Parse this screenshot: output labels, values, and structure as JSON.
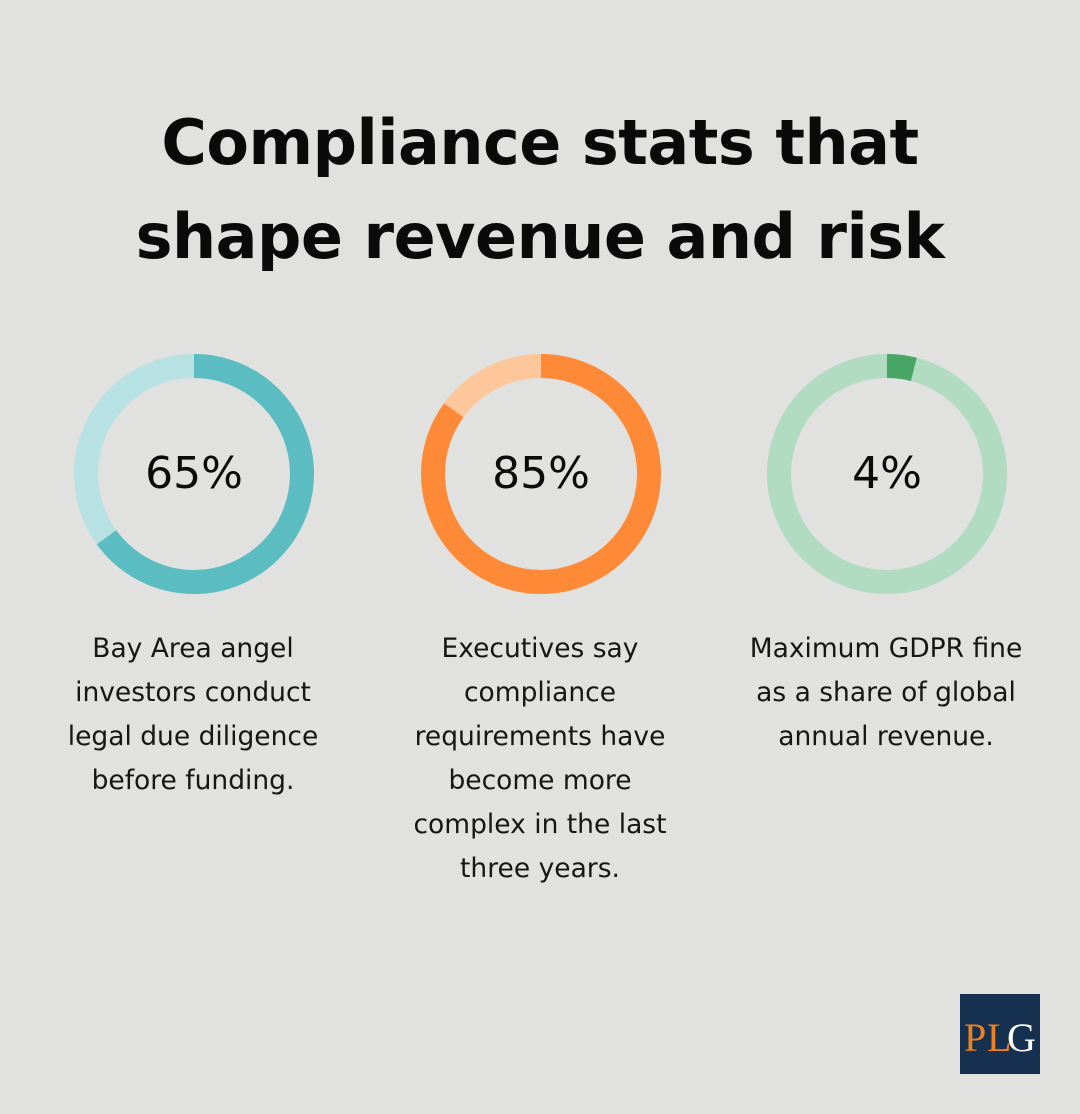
{
  "title": {
    "line1": "Compliance stats that",
    "line2": "shape revenue and risk"
  },
  "chart_data": [
    {
      "type": "pie",
      "values": [
        65,
        35
      ],
      "value_label": "65%",
      "description_lines": [
        "Bay Area angel",
        "investors conduct",
        "legal due diligence",
        "before funding."
      ],
      "colors": {
        "filled": "#5bbcc1",
        "remainder": "#b7e1e2"
      }
    },
    {
      "type": "pie",
      "values": [
        85,
        15
      ],
      "value_label": "85%",
      "description_lines": [
        "Executives say",
        "compliance",
        "requirements have",
        "become more",
        "complex in the last",
        "three years."
      ],
      "colors": {
        "filled": "#fe8a37",
        "remainder": "#fec79b"
      }
    },
    {
      "type": "pie",
      "values": [
        4,
        96
      ],
      "value_label": "4%",
      "description_lines": [
        "Maximum GDPR fine",
        "as a share of global",
        "annual revenue."
      ],
      "colors": {
        "filled": "#48a565",
        "remainder": "#b1dcc1"
      }
    }
  ],
  "logo": {
    "text": "PLG",
    "colors": {
      "background": "#16304f",
      "letters": "#f0821e"
    }
  }
}
